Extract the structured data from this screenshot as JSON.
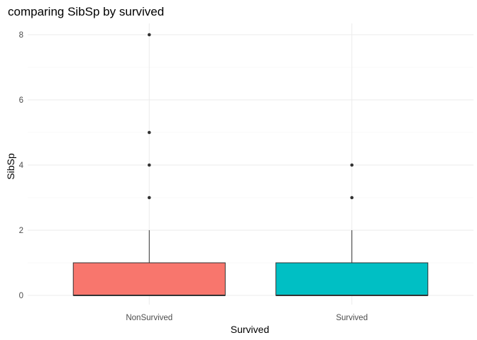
{
  "chart_data": {
    "type": "box",
    "title": "comparing SibSp by survived",
    "xlabel": "Survived",
    "ylabel": "SibSp",
    "categories": [
      "NonSurvived",
      "Survived"
    ],
    "ylim": [
      -0.2,
      8.4
    ],
    "yticks": [
      0,
      2,
      4,
      6,
      8
    ],
    "grid": true,
    "legend": "none",
    "boxes": [
      {
        "category": "NonSurvived",
        "min": 0,
        "q1": 0,
        "median": 0,
        "q3": 1,
        "max": 2,
        "outliers": [
          3,
          4,
          5,
          8
        ],
        "color": "#F8766D"
      },
      {
        "category": "Survived",
        "min": 0,
        "q1": 0,
        "median": 0,
        "q3": 1,
        "max": 2,
        "outliers": [
          3,
          4
        ],
        "color": "#00BFC4"
      }
    ]
  }
}
